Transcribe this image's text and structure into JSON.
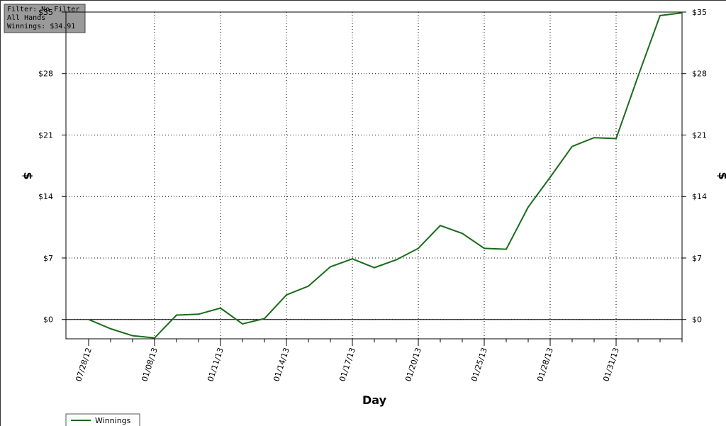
{
  "chart_data": {
    "type": "line",
    "annotations": [
      "Filter: No Filter",
      "All Hands",
      "Winnings: $34.91"
    ],
    "xlabel": "Day",
    "ylabel": "$",
    "categories": [
      "07/28/12",
      null,
      null,
      "01/08/13",
      null,
      null,
      "01/11/13",
      null,
      null,
      "01/14/13",
      null,
      null,
      "01/17/13",
      null,
      null,
      "01/20/13",
      null,
      null,
      "01/25/13",
      null,
      null,
      "01/28/13",
      null,
      null,
      "01/31/13",
      null,
      null,
      null
    ],
    "series": [
      {
        "name": "Winnings",
        "color": "#1a6b1a",
        "values": [
          0,
          -1.05,
          -1.85,
          -2.1,
          0.5,
          0.6,
          1.3,
          -0.5,
          0.1,
          2.8,
          3.8,
          6.0,
          6.9,
          5.9,
          6.8,
          8.1,
          10.7,
          9.8,
          8.1,
          8.0,
          12.8,
          16.2,
          19.7,
          20.7,
          20.6,
          27.7,
          34.6,
          34.91
        ]
      }
    ],
    "ylim": [
      -2.2,
      35
    ],
    "yticks": [
      {
        "value": 0,
        "label": "$0"
      },
      {
        "value": 7,
        "label": "$7"
      },
      {
        "value": 14,
        "label": "$14"
      },
      {
        "value": 21,
        "label": "$21"
      },
      {
        "value": 28,
        "label": "$28"
      },
      {
        "value": 35,
        "label": "$35"
      }
    ],
    "grid": true
  }
}
